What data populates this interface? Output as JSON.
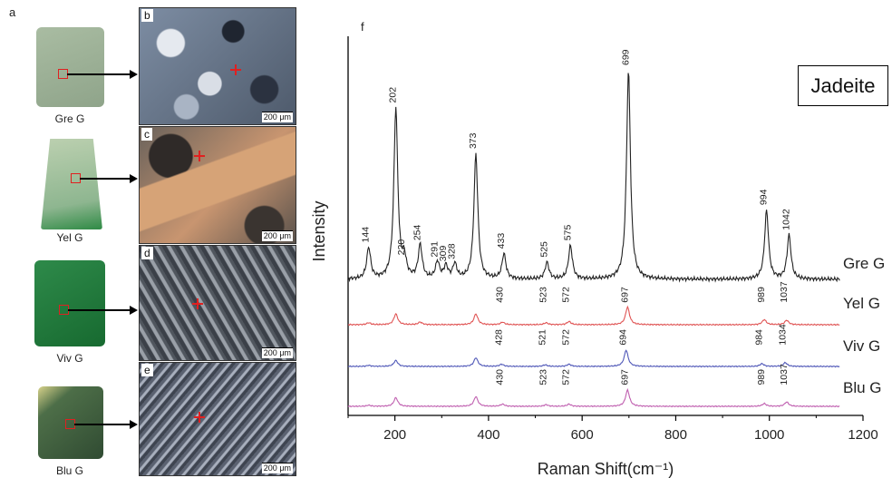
{
  "figure": {
    "panel_a_letter": "a",
    "panel_f_letter": "f",
    "samples": [
      {
        "label": "Gre G",
        "color": "#9fb59a"
      },
      {
        "label": "Yel G",
        "color": "#a9c59a"
      },
      {
        "label": "Viv G",
        "color": "#1f7a3c"
      },
      {
        "label": "Blu G",
        "color": "#3d5a3a"
      }
    ],
    "micrographs": [
      {
        "letter": "b",
        "scale": "200 μm",
        "tone": "#6f7f95"
      },
      {
        "letter": "c",
        "scale": "200 μm",
        "tone": "#b08060"
      },
      {
        "letter": "d",
        "scale": "200 μm",
        "tone": "#5f6670"
      },
      {
        "letter": "e",
        "scale": "200 μm",
        "tone": "#6c7584"
      }
    ],
    "legend_label": "Jadeite"
  },
  "chart_data": {
    "type": "line",
    "xlabel": "Raman Shift(cm⁻¹)",
    "ylabel": "Intensity",
    "xlim": [
      100,
      1200
    ],
    "xticks": [
      200,
      400,
      600,
      800,
      1000,
      1200
    ],
    "series": [
      {
        "name": "Gre G",
        "color": "#222222",
        "peaks": [
          {
            "x": 144,
            "h": 0.15
          },
          {
            "x": 202,
            "h": 0.82
          },
          {
            "x": 220,
            "h": 0.09
          },
          {
            "x": 254,
            "h": 0.16
          },
          {
            "x": 291,
            "h": 0.08
          },
          {
            "x": 309,
            "h": 0.06
          },
          {
            "x": 328,
            "h": 0.07
          },
          {
            "x": 373,
            "h": 0.6
          },
          {
            "x": 433,
            "h": 0.12
          },
          {
            "x": 525,
            "h": 0.08
          },
          {
            "x": 575,
            "h": 0.16
          },
          {
            "x": 699,
            "h": 1.0
          },
          {
            "x": 994,
            "h": 0.33
          },
          {
            "x": 1042,
            "h": 0.21
          }
        ],
        "labels": [
          "144",
          "202",
          "220",
          "254",
          "291",
          "309",
          "328",
          "373",
          "433",
          "525",
          "575",
          "699",
          "994",
          "1042"
        ]
      },
      {
        "name": "Yel G",
        "color": "#e05555",
        "peaks": [
          {
            "x": 144,
            "h": 0.03
          },
          {
            "x": 202,
            "h": 0.17
          },
          {
            "x": 254,
            "h": 0.04
          },
          {
            "x": 373,
            "h": 0.17
          },
          {
            "x": 430,
            "h": 0.04
          },
          {
            "x": 523,
            "h": 0.03
          },
          {
            "x": 572,
            "h": 0.05
          },
          {
            "x": 697,
            "h": 0.28
          },
          {
            "x": 989,
            "h": 0.08
          },
          {
            "x": 1037,
            "h": 0.07
          }
        ],
        "labels": [
          "430",
          "523",
          "572",
          "697",
          "989",
          "1037"
        ]
      },
      {
        "name": "Viv G",
        "color": "#5058b8",
        "peaks": [
          {
            "x": 144,
            "h": 0.02
          },
          {
            "x": 202,
            "h": 0.11
          },
          {
            "x": 373,
            "h": 0.16
          },
          {
            "x": 428,
            "h": 0.04
          },
          {
            "x": 521,
            "h": 0.03
          },
          {
            "x": 572,
            "h": 0.04
          },
          {
            "x": 694,
            "h": 0.3
          },
          {
            "x": 984,
            "h": 0.05
          },
          {
            "x": 1034,
            "h": 0.07
          }
        ],
        "labels": [
          "428",
          "521",
          "572",
          "694",
          "984",
          "1034"
        ]
      },
      {
        "name": "Blu G",
        "color": "#c060b0",
        "peaks": [
          {
            "x": 144,
            "h": 0.02
          },
          {
            "x": 202,
            "h": 0.16
          },
          {
            "x": 373,
            "h": 0.18
          },
          {
            "x": 430,
            "h": 0.04
          },
          {
            "x": 523,
            "h": 0.03
          },
          {
            "x": 572,
            "h": 0.04
          },
          {
            "x": 697,
            "h": 0.3
          },
          {
            "x": 989,
            "h": 0.05
          },
          {
            "x": 1037,
            "h": 0.08
          }
        ],
        "labels": [
          "430",
          "523",
          "572",
          "697",
          "989",
          "1037"
        ]
      }
    ]
  }
}
